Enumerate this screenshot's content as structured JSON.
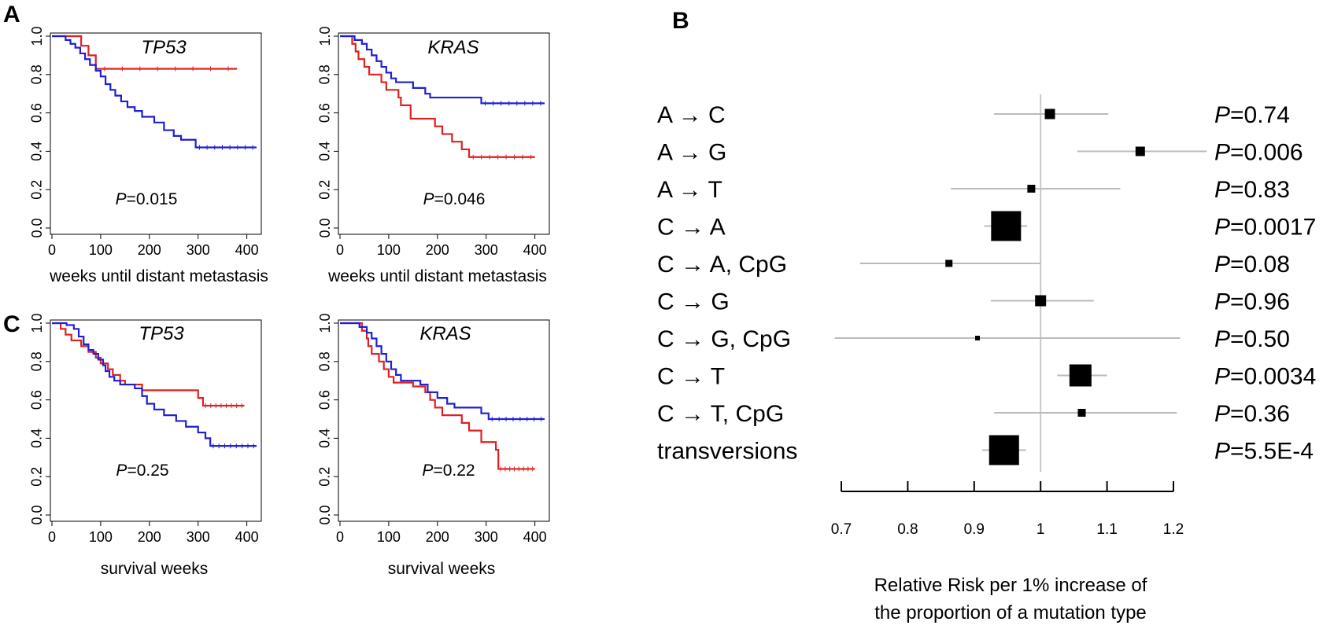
{
  "panel_labels": {
    "a": "A",
    "b": "B",
    "c": "C"
  },
  "colors": {
    "red": "#e02020",
    "blue": "#1f1fd6",
    "ci": "#bbbbbb",
    "ref_line": "#c8c8c8",
    "marker": "#000000"
  },
  "chart_data": [
    {
      "id": "km_tp53_metastasis",
      "type": "line",
      "title": "TP53",
      "xlabel": "weeks until distant metastasis",
      "p_prefix": "P",
      "p_suffix": "=0.015",
      "xlim": [
        0,
        420
      ],
      "ylim": [
        0,
        1
      ],
      "xticks": [
        "0",
        "100",
        "200",
        "300",
        "400"
      ],
      "yticks": [
        "0.0",
        "0.2",
        "0.4",
        "0.6",
        "0.8",
        "1.0"
      ],
      "series": [
        {
          "color": "red",
          "steps": [
            [
              0,
              1.0
            ],
            [
              60,
              0.95
            ],
            [
              75,
              0.9
            ],
            [
              90,
              0.83
            ],
            [
              380,
              0.83
            ]
          ]
        },
        {
          "color": "blue",
          "steps": [
            [
              0,
              1.0
            ],
            [
              28,
              0.98
            ],
            [
              38,
              0.96
            ],
            [
              48,
              0.94
            ],
            [
              58,
              0.91
            ],
            [
              68,
              0.88
            ],
            [
              78,
              0.85
            ],
            [
              90,
              0.82
            ],
            [
              100,
              0.79
            ],
            [
              110,
              0.75
            ],
            [
              120,
              0.72
            ],
            [
              130,
              0.69
            ],
            [
              142,
              0.66
            ],
            [
              155,
              0.63
            ],
            [
              170,
              0.61
            ],
            [
              185,
              0.58
            ],
            [
              210,
              0.55
            ],
            [
              230,
              0.51
            ],
            [
              250,
              0.48
            ],
            [
              265,
              0.46
            ],
            [
              295,
              0.42
            ],
            [
              420,
              0.42
            ]
          ]
        }
      ]
    },
    {
      "id": "km_kras_metastasis",
      "type": "line",
      "title": "KRAS",
      "xlabel": "weeks until distant metastasis",
      "p_prefix": "P",
      "p_suffix": "=0.046",
      "xlim": [
        0,
        420
      ],
      "ylim": [
        0,
        1
      ],
      "xticks": [
        "0",
        "100",
        "200",
        "300",
        "400"
      ],
      "yticks": [
        "0.0",
        "0.2",
        "0.4",
        "0.6",
        "0.8",
        "1.0"
      ],
      "series": [
        {
          "color": "red",
          "steps": [
            [
              0,
              1.0
            ],
            [
              25,
              0.96
            ],
            [
              32,
              0.92
            ],
            [
              38,
              0.88
            ],
            [
              50,
              0.84
            ],
            [
              60,
              0.8
            ],
            [
              85,
              0.76
            ],
            [
              95,
              0.72
            ],
            [
              120,
              0.68
            ],
            [
              125,
              0.64
            ],
            [
              145,
              0.57
            ],
            [
              195,
              0.53
            ],
            [
              210,
              0.49
            ],
            [
              230,
              0.45
            ],
            [
              250,
              0.41
            ],
            [
              265,
              0.37
            ],
            [
              400,
              0.37
            ]
          ]
        },
        {
          "color": "blue",
          "steps": [
            [
              0,
              1.0
            ],
            [
              30,
              0.98
            ],
            [
              45,
              0.96
            ],
            [
              55,
              0.93
            ],
            [
              65,
              0.9
            ],
            [
              75,
              0.87
            ],
            [
              85,
              0.84
            ],
            [
              95,
              0.81
            ],
            [
              105,
              0.78
            ],
            [
              115,
              0.76
            ],
            [
              150,
              0.73
            ],
            [
              175,
              0.7
            ],
            [
              185,
              0.68
            ],
            [
              290,
              0.65
            ],
            [
              420,
              0.65
            ]
          ]
        }
      ]
    },
    {
      "id": "km_tp53_survival",
      "type": "line",
      "title": "TP53",
      "xlabel": "survival weeks",
      "p_prefix": "P",
      "p_suffix": "=0.25",
      "xlim": [
        0,
        420
      ],
      "ylim": [
        0,
        1
      ],
      "xticks": [
        "0",
        "100",
        "200",
        "300",
        "400"
      ],
      "yticks": [
        "0.0",
        "0.2",
        "0.4",
        "0.6",
        "0.8",
        "1.0"
      ],
      "series": [
        {
          "color": "red",
          "steps": [
            [
              0,
              1.0
            ],
            [
              18,
              0.97
            ],
            [
              28,
              0.94
            ],
            [
              40,
              0.91
            ],
            [
              60,
              0.88
            ],
            [
              75,
              0.85
            ],
            [
              90,
              0.82
            ],
            [
              100,
              0.79
            ],
            [
              115,
              0.76
            ],
            [
              125,
              0.73
            ],
            [
              140,
              0.7
            ],
            [
              150,
              0.68
            ],
            [
              185,
              0.65
            ],
            [
              300,
              0.61
            ],
            [
              310,
              0.57
            ],
            [
              395,
              0.57
            ]
          ]
        },
        {
          "color": "blue",
          "steps": [
            [
              0,
              1.0
            ],
            [
              30,
              0.99
            ],
            [
              45,
              0.97
            ],
            [
              55,
              0.93
            ],
            [
              65,
              0.89
            ],
            [
              75,
              0.86
            ],
            [
              85,
              0.84
            ],
            [
              95,
              0.81
            ],
            [
              105,
              0.78
            ],
            [
              110,
              0.75
            ],
            [
              118,
              0.72
            ],
            [
              128,
              0.7
            ],
            [
              140,
              0.68
            ],
            [
              170,
              0.66
            ],
            [
              185,
              0.62
            ],
            [
              195,
              0.58
            ],
            [
              210,
              0.55
            ],
            [
              230,
              0.52
            ],
            [
              255,
              0.49
            ],
            [
              275,
              0.46
            ],
            [
              300,
              0.43
            ],
            [
              315,
              0.4
            ],
            [
              325,
              0.36
            ],
            [
              420,
              0.36
            ]
          ]
        }
      ]
    },
    {
      "id": "km_kras_survival",
      "type": "line",
      "title": "KRAS",
      "xlabel": "survival weeks",
      "p_prefix": "P",
      "p_suffix": "=0.22",
      "xlim": [
        0,
        420
      ],
      "ylim": [
        0,
        1
      ],
      "xticks": [
        "0",
        "100",
        "200",
        "300",
        "400"
      ],
      "yticks": [
        "0.0",
        "0.2",
        "0.4",
        "0.6",
        "0.8",
        "1.0"
      ],
      "series": [
        {
          "color": "red",
          "steps": [
            [
              0,
              1.0
            ],
            [
              45,
              0.96
            ],
            [
              55,
              0.92
            ],
            [
              58,
              0.88
            ],
            [
              65,
              0.84
            ],
            [
              80,
              0.8
            ],
            [
              90,
              0.76
            ],
            [
              100,
              0.72
            ],
            [
              110,
              0.69
            ],
            [
              150,
              0.67
            ],
            [
              175,
              0.64
            ],
            [
              185,
              0.6
            ],
            [
              195,
              0.56
            ],
            [
              210,
              0.52
            ],
            [
              250,
              0.48
            ],
            [
              265,
              0.44
            ],
            [
              290,
              0.38
            ],
            [
              320,
              0.34
            ],
            [
              325,
              0.24
            ],
            [
              400,
              0.24
            ]
          ]
        },
        {
          "color": "blue",
          "steps": [
            [
              0,
              1.0
            ],
            [
              40,
              0.98
            ],
            [
              55,
              0.95
            ],
            [
              65,
              0.92
            ],
            [
              75,
              0.88
            ],
            [
              85,
              0.84
            ],
            [
              95,
              0.8
            ],
            [
              105,
              0.76
            ],
            [
              115,
              0.73
            ],
            [
              125,
              0.7
            ],
            [
              165,
              0.68
            ],
            [
              180,
              0.64
            ],
            [
              200,
              0.61
            ],
            [
              220,
              0.58
            ],
            [
              235,
              0.56
            ],
            [
              290,
              0.53
            ],
            [
              305,
              0.5
            ],
            [
              420,
              0.5
            ]
          ]
        }
      ]
    },
    {
      "id": "forest_relative_risk",
      "type": "scatter",
      "xlabel_line1": "Relative Risk per 1% increase of",
      "xlabel_line2": "the proportion of a mutation type",
      "xlim": [
        0.7,
        1.2
      ],
      "xticks": [
        "0.7",
        "0.8",
        "0.9",
        "1",
        "1.1",
        "1.2"
      ],
      "reference": 1.0,
      "p_prefix": "P",
      "rows": [
        {
          "label": "A → C",
          "estimate": 1.014,
          "ci": [
            0.93,
            1.102
          ],
          "weight": 13,
          "p": "=0.74"
        },
        {
          "label": "A → G",
          "estimate": 1.15,
          "ci": [
            1.055,
            1.25
          ],
          "weight": 12,
          "p": "=0.006"
        },
        {
          "label": "A → T",
          "estimate": 0.986,
          "ci": [
            0.865,
            1.12
          ],
          "weight": 10,
          "p": "=0.83"
        },
        {
          "label": "C → A",
          "estimate": 0.948,
          "ci": [
            0.915,
            0.98
          ],
          "weight": 38,
          "p": "=0.0017"
        },
        {
          "label": "C → A, CpG",
          "estimate": 0.862,
          "ci": [
            0.728,
            1.0
          ],
          "weight": 9,
          "p": "=0.08"
        },
        {
          "label": "C → G",
          "estimate": 1.0,
          "ci": [
            0.925,
            1.08
          ],
          "weight": 14,
          "p": "=0.96"
        },
        {
          "label": "C → G, CpG",
          "estimate": 0.905,
          "ci": [
            0.665,
            1.21
          ],
          "weight": 6,
          "p": "=0.50"
        },
        {
          "label": "C → T",
          "estimate": 1.06,
          "ci": [
            1.025,
            1.1
          ],
          "weight": 28,
          "p": "=0.0034"
        },
        {
          "label": "C → T, CpG",
          "estimate": 1.062,
          "ci": [
            0.93,
            1.205
          ],
          "weight": 10,
          "p": "=0.36"
        },
        {
          "label": "transversions",
          "estimate": 0.945,
          "ci": [
            0.912,
            0.978
          ],
          "weight": 38,
          "p": "=5.5E-4"
        }
      ]
    }
  ]
}
